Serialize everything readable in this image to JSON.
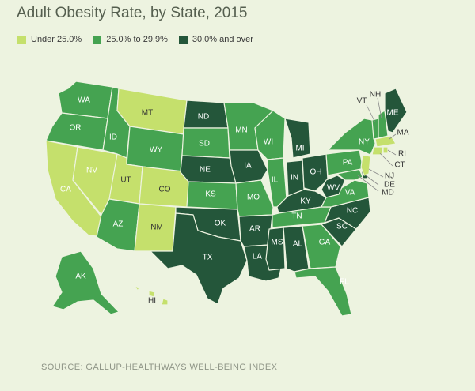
{
  "title": "Adult Obesity Rate, by State, 2015",
  "legend": [
    {
      "label": "Under 25.0%",
      "color": "#c5e06c"
    },
    {
      "label": "25.0% to 29.9%",
      "color": "#45a351"
    },
    {
      "label": "30.0% and over",
      "color": "#24563a"
    }
  ],
  "source": "SOURCE: GALLUP-HEALTHWAYS WELL-BEING INDEX",
  "states": [
    {
      "code": "WA",
      "category": 1
    },
    {
      "code": "OR",
      "category": 1
    },
    {
      "code": "CA",
      "category": 0
    },
    {
      "code": "NV",
      "category": 0
    },
    {
      "code": "ID",
      "category": 1
    },
    {
      "code": "MT",
      "category": 0
    },
    {
      "code": "WY",
      "category": 1
    },
    {
      "code": "UT",
      "category": 0
    },
    {
      "code": "CO",
      "category": 0
    },
    {
      "code": "AZ",
      "category": 1
    },
    {
      "code": "NM",
      "category": 0
    },
    {
      "code": "ND",
      "category": 2
    },
    {
      "code": "SD",
      "category": 1
    },
    {
      "code": "NE",
      "category": 2
    },
    {
      "code": "KS",
      "category": 1
    },
    {
      "code": "OK",
      "category": 2
    },
    {
      "code": "TX",
      "category": 2
    },
    {
      "code": "MN",
      "category": 1
    },
    {
      "code": "IA",
      "category": 2
    },
    {
      "code": "MO",
      "category": 1
    },
    {
      "code": "AR",
      "category": 2
    },
    {
      "code": "LA",
      "category": 2
    },
    {
      "code": "WI",
      "category": 1
    },
    {
      "code": "IL",
      "category": 1
    },
    {
      "code": "MI",
      "category": 2
    },
    {
      "code": "IN",
      "category": 2
    },
    {
      "code": "OH",
      "category": 2
    },
    {
      "code": "KY",
      "category": 2
    },
    {
      "code": "TN",
      "category": 1
    },
    {
      "code": "MS",
      "category": 2
    },
    {
      "code": "AL",
      "category": 2
    },
    {
      "code": "GA",
      "category": 1
    },
    {
      "code": "FL",
      "category": 1
    },
    {
      "code": "SC",
      "category": 2
    },
    {
      "code": "NC",
      "category": 2
    },
    {
      "code": "VA",
      "category": 1
    },
    {
      "code": "WV",
      "category": 2
    },
    {
      "code": "PA",
      "category": 1
    },
    {
      "code": "NY",
      "category": 1
    },
    {
      "code": "ME",
      "category": 2
    },
    {
      "code": "VT",
      "category": 1
    },
    {
      "code": "NH",
      "category": 1
    },
    {
      "code": "MA",
      "category": 0
    },
    {
      "code": "RI",
      "category": 0
    },
    {
      "code": "CT",
      "category": 0
    },
    {
      "code": "NJ",
      "category": 0
    },
    {
      "code": "DE",
      "category": 2
    },
    {
      "code": "MD",
      "category": 1
    },
    {
      "code": "AK",
      "category": 1
    },
    {
      "code": "HI",
      "category": 0
    }
  ]
}
